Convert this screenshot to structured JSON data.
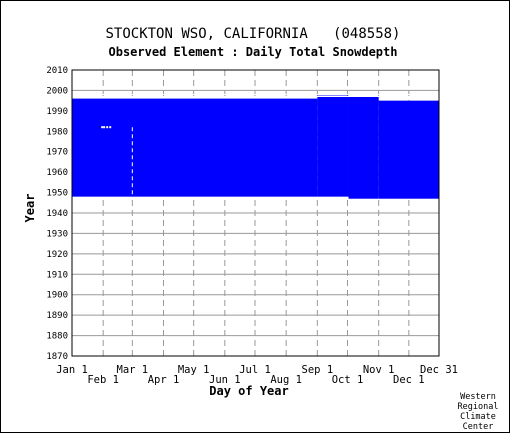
{
  "chart_data": {
    "type": "heatmap",
    "title": "STOCKTON WSO, CALIFORNIA   (048558)",
    "subtitle": "Observed Element : Daily Total Snowdepth",
    "xlabel": "Day of Year",
    "ylabel": "Year",
    "ylim": [
      1870,
      2010
    ],
    "yticks": [
      1870,
      1880,
      1890,
      1900,
      1910,
      1920,
      1930,
      1940,
      1950,
      1960,
      1970,
      1980,
      1990,
      2000,
      2010
    ],
    "xlim": [
      1,
      366
    ],
    "month_ticks_top": [
      {
        "label": "Jan 1",
        "day": 1
      },
      {
        "label": "Mar 1",
        "day": 61
      },
      {
        "label": "May 1",
        "day": 122
      },
      {
        "label": "Jul 1",
        "day": 183
      },
      {
        "label": "Sep 1",
        "day": 245
      },
      {
        "label": "Nov 1",
        "day": 306
      },
      {
        "label": "Dec 31",
        "day": 366
      }
    ],
    "month_ticks_bottom": [
      {
        "label": "Feb 1",
        "day": 32
      },
      {
        "label": "Apr 1",
        "day": 92
      },
      {
        "label": "Jun 1",
        "day": 153
      },
      {
        "label": "Aug 1",
        "day": 214
      },
      {
        "label": "Oct 1",
        "day": 275
      },
      {
        "label": "Dec 1",
        "day": 336
      }
    ],
    "grid": true,
    "colors": {
      "data": "#0000ff",
      "grid": "#999999",
      "background": "#ffffff"
    },
    "coverage_blocks": [
      {
        "day_start": 1,
        "day_end": 245,
        "year_start": 1948,
        "year_end": 1996
      },
      {
        "day_start": 245,
        "day_end": 276,
        "year_start": 1948,
        "year_end": 1997.5
      },
      {
        "day_start": 276,
        "day_end": 306,
        "year_start": 1947,
        "year_end": 1997
      },
      {
        "day_start": 306,
        "day_end": 366,
        "year_start": 1947,
        "year_end": 1995
      }
    ],
    "missing_marks": [
      {
        "day": 61,
        "year_start": 1948,
        "year_end": 1982
      },
      {
        "day": 31,
        "year_start": 1982,
        "year_end": 1982
      },
      {
        "day": 33,
        "year_start": 1982,
        "year_end": 1982
      },
      {
        "day": 36,
        "year_start": 1982,
        "year_end": 1982
      },
      {
        "day": 39,
        "year_start": 1982,
        "year_end": 1982
      }
    ],
    "missing_years": [
      1997,
      1998
    ]
  },
  "credit": [
    "Western",
    "Regional",
    "Climate",
    "Center"
  ]
}
